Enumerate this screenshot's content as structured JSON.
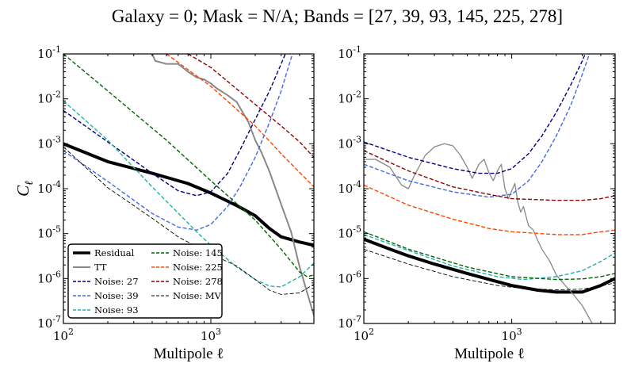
{
  "figure": {
    "title": "Galaxy = 0; Mask = N/A; Bands = [27, 39, 93, 145, 225, 278]"
  },
  "chart_data": [
    {
      "type": "line",
      "xscale": "log",
      "yscale": "log",
      "xlim": [
        100,
        5000
      ],
      "ylim": [
        1e-07,
        0.1
      ],
      "xlabel": "Multipole ℓ",
      "ylabel": "C_ℓ",
      "xticklabels": [
        "10^2",
        "10^3"
      ],
      "yticklabels": [
        "10^-7",
        "10^-6",
        "10^-5",
        "10^-4",
        "10^-3",
        "10^-2",
        "10^-1"
      ],
      "legend": {
        "placement": "lower-left",
        "columns": 2
      },
      "series": [
        {
          "name": "Residual",
          "color": "#000000",
          "style": "solid",
          "width": 4,
          "points": [
            [
              100,
              0.001
            ],
            [
              200,
              0.0004
            ],
            [
              400,
              0.00022
            ],
            [
              700,
              0.00013
            ],
            [
              1000,
              8e-05
            ],
            [
              1500,
              4.2e-05
            ],
            [
              2000,
              2.5e-05
            ],
            [
              2500,
              1.3e-05
            ],
            [
              3000,
              8.5e-06
            ],
            [
              4000,
              6.5e-06
            ],
            [
              5000,
              5.5e-06
            ]
          ]
        },
        {
          "name": "TT",
          "color": "#888888",
          "style": "solid",
          "width": 2,
          "points": [
            [
              400,
              0.1
            ],
            [
              420,
              0.07
            ],
            [
              500,
              0.06
            ],
            [
              600,
              0.06
            ],
            [
              700,
              0.04
            ],
            [
              800,
              0.03
            ],
            [
              900,
              0.027
            ],
            [
              1000,
              0.022
            ],
            [
              1100,
              0.017
            ],
            [
              1300,
              0.012
            ],
            [
              1500,
              0.0085
            ],
            [
              1800,
              0.003
            ],
            [
              2000,
              0.0012
            ],
            [
              2200,
              0.00065
            ],
            [
              2500,
              0.00024
            ],
            [
              3000,
              4.5e-05
            ],
            [
              3500,
              1.1e-05
            ],
            [
              4000,
              1.8e-06
            ],
            [
              5000,
              1.5e-07
            ]
          ]
        },
        {
          "name": "Noise: 27",
          "color": "#00007a",
          "style": "dashed",
          "width": 1.4,
          "points": [
            [
              100,
              0.0055
            ],
            [
              200,
              0.0011
            ],
            [
              400,
              0.00022
            ],
            [
              600,
              9e-05
            ],
            [
              800,
              7e-05
            ],
            [
              1000,
              8.5e-05
            ],
            [
              1300,
              0.00022
            ],
            [
              1600,
              0.0008
            ],
            [
              2000,
              0.0035
            ],
            [
              2500,
              0.015
            ],
            [
              3000,
              0.06
            ],
            [
              3500,
              0.2
            ]
          ]
        },
        {
          "name": "Noise: 39",
          "color": "#4169e1",
          "style": "dashed",
          "width": 1.4,
          "points": [
            [
              100,
              0.0007
            ],
            [
              200,
              0.000145
            ],
            [
              400,
              2.8e-05
            ],
            [
              600,
              1.4e-05
            ],
            [
              800,
              1.2e-05
            ],
            [
              1000,
              1.6e-05
            ],
            [
              1300,
              4e-05
            ],
            [
              1600,
              0.00012
            ],
            [
              2000,
              0.0005
            ],
            [
              2500,
              0.003
            ],
            [
              3000,
              0.015
            ],
            [
              3500,
              0.08
            ],
            [
              4000,
              0.3
            ]
          ]
        },
        {
          "name": "Noise: 93",
          "color": "#20b2aa",
          "style": "dashed",
          "width": 1.4,
          "points": [
            [
              100,
              0.009
            ],
            [
              200,
              0.0012
            ],
            [
              400,
              0.00011
            ],
            [
              800,
              1.1e-05
            ],
            [
              1000,
              5.5e-06
            ],
            [
              1500,
              1.8e-06
            ],
            [
              2000,
              9.5e-07
            ],
            [
              2500,
              6.8e-07
            ],
            [
              3000,
              6.5e-07
            ],
            [
              4000,
              1.1e-06
            ],
            [
              5000,
              2.2e-06
            ]
          ]
        },
        {
          "name": "Noise: 145",
          "color": "#006400",
          "style": "dashed",
          "width": 1.4,
          "points": [
            [
              100,
              0.1
            ],
            [
              200,
              0.015
            ],
            [
              500,
              0.0012
            ],
            [
              1000,
              0.00015
            ],
            [
              2000,
              2e-05
            ],
            [
              3000,
              4.5e-06
            ],
            [
              4000,
              1.4e-06
            ],
            [
              4500,
              1.1e-06
            ],
            [
              5000,
              1.2e-06
            ]
          ]
        },
        {
          "name": "Noise: 225",
          "color": "#ff4500",
          "style": "dashed",
          "width": 1.4,
          "points": [
            [
              500,
              0.1
            ],
            [
              1000,
              0.019
            ],
            [
              2000,
              0.0025
            ],
            [
              3000,
              0.0006
            ],
            [
              4000,
              0.00023
            ],
            [
              5000,
              0.00011
            ]
          ]
        },
        {
          "name": "Noise: 278",
          "color": "#8b0000",
          "style": "dashed",
          "width": 1.4,
          "points": [
            [
              700,
              0.1
            ],
            [
              1000,
              0.05
            ],
            [
              2000,
              0.0075
            ],
            [
              3000,
              0.0025
            ],
            [
              4000,
              0.0011
            ],
            [
              5000,
              0.0005
            ]
          ]
        },
        {
          "name": "Noise: MV",
          "color": "#000000",
          "style": "dashed",
          "width": 0.9,
          "points": [
            [
              100,
              0.00085
            ],
            [
              200,
              0.000105
            ],
            [
              400,
              2.2e-05
            ],
            [
              600,
              8.5e-06
            ],
            [
              1000,
              3.5e-06
            ],
            [
              1500,
              1.9e-06
            ],
            [
              2000,
              9.5e-07
            ],
            [
              2500,
              5.5e-07
            ],
            [
              3000,
              4.4e-07
            ],
            [
              4000,
              4.8e-07
            ],
            [
              5000,
              7.5e-07
            ]
          ]
        }
      ]
    },
    {
      "type": "line",
      "xscale": "log",
      "yscale": "log",
      "xlim": [
        100,
        5000
      ],
      "ylim": [
        1e-07,
        0.1
      ],
      "xlabel": "Multipole ℓ",
      "ylabel": "",
      "xticklabels": [
        "10^2",
        "10^3"
      ],
      "yticklabels": [
        "10^-7",
        "10^-6",
        "10^-5",
        "10^-4",
        "10^-3",
        "10^-2",
        "10^-1"
      ],
      "series": [
        {
          "name": "Residual",
          "color": "#000000",
          "style": "solid",
          "width": 4,
          "points": [
            [
              100,
              7.5e-06
            ],
            [
              150,
              4.5e-06
            ],
            [
              200,
              3.2e-06
            ],
            [
              300,
              2.1e-06
            ],
            [
              500,
              1.3e-06
            ],
            [
              800,
              8.5e-07
            ],
            [
              1000,
              7e-07
            ],
            [
              1500,
              5.5e-07
            ],
            [
              2000,
              5e-07
            ],
            [
              3000,
              5e-07
            ],
            [
              4000,
              7e-07
            ],
            [
              5000,
              1e-06
            ]
          ]
        },
        {
          "name": "TT",
          "color": "#888888",
          "style": "solid",
          "width": 1.3,
          "points": [
            [
              100,
              0.00045
            ],
            [
              120,
              0.00045
            ],
            [
              150,
              0.0003
            ],
            [
              180,
              0.00012
            ],
            [
              200,
              0.0001
            ],
            [
              220,
              0.0002
            ],
            [
              260,
              0.00055
            ],
            [
              300,
              0.00085
            ],
            [
              350,
              0.001
            ],
            [
              400,
              0.0009
            ],
            [
              450,
              0.00055
            ],
            [
              500,
              0.0003
            ],
            [
              540,
              0.00017
            ],
            [
              600,
              0.00035
            ],
            [
              650,
              0.00045
            ],
            [
              700,
              0.00023
            ],
            [
              750,
              0.00015
            ],
            [
              800,
              0.00025
            ],
            [
              850,
              0.00035
            ],
            [
              900,
              0.0001
            ],
            [
              950,
              6e-05
            ],
            [
              1000,
              9e-05
            ],
            [
              1050,
              0.00013
            ],
            [
              1100,
              5e-05
            ],
            [
              1150,
              3e-05
            ],
            [
              1200,
              4e-05
            ],
            [
              1300,
              1.5e-05
            ],
            [
              1400,
              1.2e-05
            ],
            [
              1500,
              7e-06
            ],
            [
              1600,
              4.5e-06
            ],
            [
              1800,
              2.5e-06
            ],
            [
              2000,
              1.2e-06
            ],
            [
              2300,
              7e-07
            ],
            [
              2600,
              4.5e-07
            ],
            [
              3000,
              2.5e-07
            ],
            [
              3500,
              1e-07
            ]
          ]
        },
        {
          "name": "Noise: 27",
          "color": "#00007a",
          "style": "dashed",
          "width": 1.4,
          "points": [
            [
              100,
              0.0011
            ],
            [
              200,
              0.0005
            ],
            [
              400,
              0.00028
            ],
            [
              600,
              0.00022
            ],
            [
              800,
              0.00022
            ],
            [
              1000,
              0.00028
            ],
            [
              1300,
              0.0006
            ],
            [
              1600,
              0.0015
            ],
            [
              2000,
              0.005
            ],
            [
              2500,
              0.02
            ],
            [
              3000,
              0.07
            ],
            [
              3300,
              0.15
            ]
          ]
        },
        {
          "name": "Noise: 39",
          "color": "#4169e1",
          "style": "dashed",
          "width": 1.4,
          "points": [
            [
              100,
              0.00035
            ],
            [
              200,
              0.00015
            ],
            [
              400,
              8.5e-05
            ],
            [
              700,
              6.5e-05
            ],
            [
              1000,
              7.5e-05
            ],
            [
              1300,
              0.00015
            ],
            [
              1600,
              0.0004
            ],
            [
              2000,
              0.0015
            ],
            [
              2500,
              0.007
            ],
            [
              3000,
              0.035
            ],
            [
              3500,
              0.15
            ]
          ]
        },
        {
          "name": "Noise: 93",
          "color": "#20b2aa",
          "style": "dashed",
          "width": 1.4,
          "points": [
            [
              100,
              9.5e-06
            ],
            [
              200,
              4.2e-06
            ],
            [
              400,
              1.9e-06
            ],
            [
              800,
              1.1e-06
            ],
            [
              1200,
              9.5e-07
            ],
            [
              2000,
              1.1e-06
            ],
            [
              3000,
              1.5e-06
            ],
            [
              4000,
              2.4e-06
            ],
            [
              5000,
              3.7e-06
            ]
          ]
        },
        {
          "name": "Noise: 145",
          "color": "#006400",
          "style": "dashed",
          "width": 1.4,
          "points": [
            [
              100,
              1.1e-05
            ],
            [
              200,
              4.5e-06
            ],
            [
              500,
              1.8e-06
            ],
            [
              1000,
              1.1e-06
            ],
            [
              2000,
              9.5e-07
            ],
            [
              3000,
              9.8e-07
            ],
            [
              4000,
              1.1e-06
            ],
            [
              5000,
              1.3e-06
            ]
          ]
        },
        {
          "name": "Noise: 225",
          "color": "#ff4500",
          "style": "dashed",
          "width": 1.4,
          "points": [
            [
              100,
              0.00012
            ],
            [
              200,
              4.3e-05
            ],
            [
              400,
              2.1e-05
            ],
            [
              700,
              1.3e-05
            ],
            [
              1000,
              1.1e-05
            ],
            [
              2000,
              9.5e-06
            ],
            [
              3000,
              9.5e-06
            ],
            [
              4000,
              1.1e-05
            ],
            [
              5000,
              1.2e-05
            ]
          ]
        },
        {
          "name": "Noise: 278",
          "color": "#8b0000",
          "style": "dashed",
          "width": 1.4,
          "points": [
            [
              100,
              0.0007
            ],
            [
              200,
              0.00025
            ],
            [
              400,
              0.00011
            ],
            [
              700,
              7.5e-05
            ],
            [
              1000,
              6e-05
            ],
            [
              2000,
              5.5e-05
            ],
            [
              3000,
              5.5e-05
            ],
            [
              4000,
              6e-05
            ],
            [
              5000,
              7e-05
            ]
          ]
        },
        {
          "name": "Noise: MV",
          "color": "#000000",
          "style": "dashed",
          "width": 0.9,
          "points": [
            [
              100,
              4.5e-06
            ],
            [
              200,
              2.1e-06
            ],
            [
              400,
              1.1e-06
            ],
            [
              800,
              7e-07
            ],
            [
              1200,
              6e-07
            ],
            [
              2000,
              5.6e-07
            ],
            [
              3000,
              5.8e-07
            ],
            [
              4000,
              6.8e-07
            ],
            [
              5000,
              8e-07
            ]
          ]
        }
      ]
    }
  ]
}
